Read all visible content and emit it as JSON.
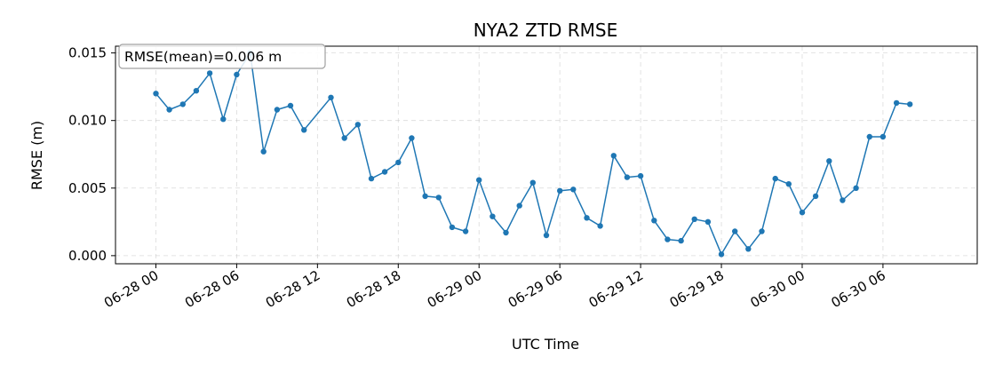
{
  "chart_data": {
    "type": "line",
    "title": "NYA2 ZTD RMSE",
    "xlabel": "UTC Time",
    "ylabel": "RMSE (m)",
    "ylim": [
      -0.0006,
      0.0155
    ],
    "xlim": [
      "06-27 21:00",
      "06-30 13:00"
    ],
    "grid": true,
    "x_ticks": [
      {
        "label": "06-28 00",
        "t": "06-28 00:00"
      },
      {
        "label": "06-28 06",
        "t": "06-28 06:00"
      },
      {
        "label": "06-28 12",
        "t": "06-28 12:00"
      },
      {
        "label": "06-28 18",
        "t": "06-28 18:00"
      },
      {
        "label": "06-29 00",
        "t": "06-29 00:00"
      },
      {
        "label": "06-29 06",
        "t": "06-29 06:00"
      },
      {
        "label": "06-29 12",
        "t": "06-29 12:00"
      },
      {
        "label": "06-29 18",
        "t": "06-29 18:00"
      },
      {
        "label": "06-30 00",
        "t": "06-30 00:00"
      },
      {
        "label": "06-30 06",
        "t": "06-30 06:00"
      }
    ],
    "y_ticks": [
      {
        "label": "0.000",
        "v": 0.0
      },
      {
        "label": "0.005",
        "v": 0.005
      },
      {
        "label": "0.010",
        "v": 0.01
      },
      {
        "label": "0.015",
        "v": 0.015
      }
    ],
    "annotation": "RMSE(mean)=0.006 m",
    "series": [
      {
        "color": "#1f77b4",
        "x": [
          "06-28 00:00",
          "06-28 01:00",
          "06-28 02:00",
          "06-28 03:00",
          "06-28 04:00",
          "06-28 05:00",
          "06-28 06:00",
          "06-28 07:00",
          "06-28 08:00",
          "06-28 09:00",
          "06-28 10:00",
          "06-28 11:00",
          "06-28 13:00",
          "06-28 14:00",
          "06-28 15:00",
          "06-28 16:00",
          "06-28 17:00",
          "06-28 18:00",
          "06-28 19:00",
          "06-28 20:00",
          "06-28 21:00",
          "06-28 22:00",
          "06-28 23:00",
          "06-29 00:00",
          "06-29 01:00",
          "06-29 02:00",
          "06-29 03:00",
          "06-29 04:00",
          "06-29 05:00",
          "06-29 06:00",
          "06-29 07:00",
          "06-29 08:00",
          "06-29 09:00",
          "06-29 10:00",
          "06-29 11:00",
          "06-29 12:00",
          "06-29 13:00",
          "06-29 14:00",
          "06-29 15:00",
          "06-29 16:00",
          "06-29 17:00",
          "06-29 18:00",
          "06-29 19:00",
          "06-29 20:00",
          "06-29 21:00",
          "06-29 22:00",
          "06-29 23:00",
          "06-30 00:00",
          "06-30 01:00",
          "06-30 02:00",
          "06-30 03:00",
          "06-30 04:00",
          "06-30 05:00",
          "06-30 06:00",
          "06-30 07:00",
          "06-30 08:00"
        ],
        "y": [
          0.012,
          0.0108,
          0.0112,
          0.0122,
          0.0135,
          0.0101,
          0.0134,
          0.015,
          0.0077,
          0.0108,
          0.0111,
          0.0093,
          0.0117,
          0.0087,
          0.0097,
          0.0057,
          0.0062,
          0.0069,
          0.0087,
          0.0044,
          0.0043,
          0.0021,
          0.0018,
          0.0056,
          0.0029,
          0.0017,
          0.0037,
          0.0054,
          0.0015,
          0.0048,
          0.0049,
          0.0028,
          0.0022,
          0.0074,
          0.0058,
          0.0059,
          0.0026,
          0.0012,
          0.0011,
          0.0027,
          0.0025,
          0.0001,
          0.0018,
          0.0005,
          0.0018,
          0.0057,
          0.0053,
          0.0032,
          0.0044,
          0.007,
          0.0041,
          0.005,
          0.0088,
          0.0088,
          0.0113,
          0.0112
        ]
      }
    ]
  }
}
